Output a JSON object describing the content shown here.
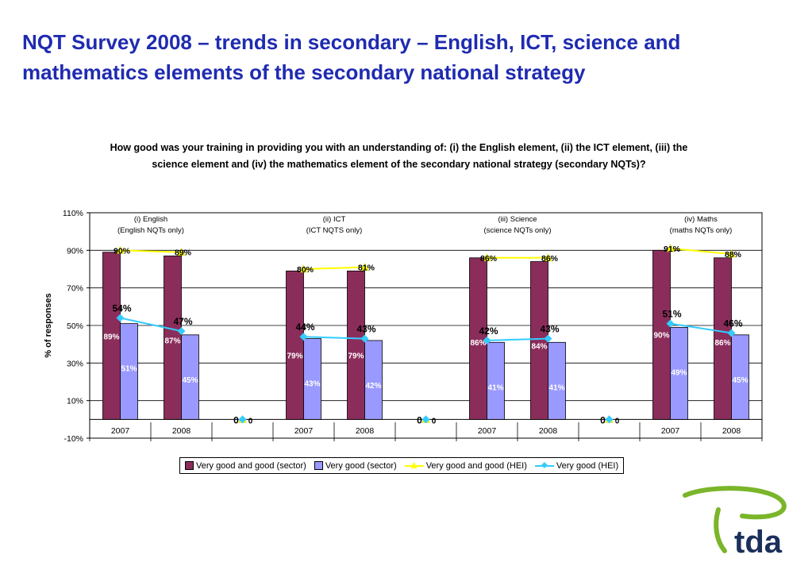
{
  "slide": {
    "title": "NQT Survey 2008 – trends in secondary – English, ICT, science and mathematics elements of the secondary national strategy"
  },
  "logo": {
    "text": "tda"
  },
  "colors": {
    "sector_vgg": "#8b2d5b",
    "sector_vg": "#9999ff",
    "hei_vgg": "#ffff00",
    "hei_vg": "#33ccff",
    "title": "#1f2bb0",
    "logo_green": "#7ab52a",
    "logo_navy": "#1b2f5a"
  },
  "chart_data": {
    "type": "bar",
    "title": "How good was your training in providing you with an understanding of: (i) the English element, (ii) the ICT element, (iii) the science element and (iv) the mathematics element of the secondary national strategy (secondary NQTs)?",
    "ylabel": "% of responses",
    "ylim": [
      -10,
      110
    ],
    "yticks": [
      "110%",
      "90%",
      "70%",
      "50%",
      "30%",
      "10%",
      "-10%"
    ],
    "grid": true,
    "legend_position": "bottom",
    "categories": [
      "2007",
      "2008",
      "",
      "2007",
      "2008",
      "",
      "2007",
      "2008",
      "",
      "2007",
      "2008"
    ],
    "groups": [
      {
        "label_line1": "(i) English",
        "label_line2": "(English NQTs only)"
      },
      {
        "label_line1": "(ii) ICT",
        "label_line2": "(ICT NQTS only)"
      },
      {
        "label_line1": "(iii) Science",
        "label_line2": "(science NQTs only)"
      },
      {
        "label_line1": "(iv) Maths",
        "label_line2": "(maths NQTs only)"
      }
    ],
    "series": [
      {
        "name": "Very good and good (sector)",
        "type": "bar",
        "values": [
          89,
          87,
          null,
          79,
          79,
          null,
          86,
          84,
          null,
          90,
          86
        ],
        "labels": [
          "89%",
          "87%",
          "",
          "79%",
          "79%",
          "",
          "86%",
          "84%",
          "",
          "90%",
          "86%"
        ]
      },
      {
        "name": "Very good (sector)",
        "type": "bar",
        "values": [
          51,
          45,
          null,
          43,
          42,
          null,
          41,
          41,
          null,
          49,
          45
        ],
        "labels": [
          "51%",
          "45%",
          "",
          "43%",
          "42%",
          "",
          "41%",
          "41%",
          "",
          "49%",
          "45%"
        ]
      },
      {
        "name": "Very good and good (HEI)",
        "type": "line",
        "values": [
          90,
          89,
          0,
          80,
          81,
          0,
          86,
          86,
          0,
          91,
          88
        ],
        "labels": [
          "90%",
          "89%",
          "0",
          "80%",
          "81%",
          "0",
          "86%",
          "86%",
          "0",
          "91%",
          "88%"
        ]
      },
      {
        "name": "Very good (HEI)",
        "type": "line",
        "values": [
          54,
          47,
          0,
          44,
          43,
          0,
          42,
          43,
          0,
          51,
          46
        ],
        "labels": [
          "54%",
          "47%",
          "0",
          "44%",
          "43%",
          "0",
          "42%",
          "43%",
          "0",
          "51%",
          "46%"
        ]
      }
    ]
  }
}
